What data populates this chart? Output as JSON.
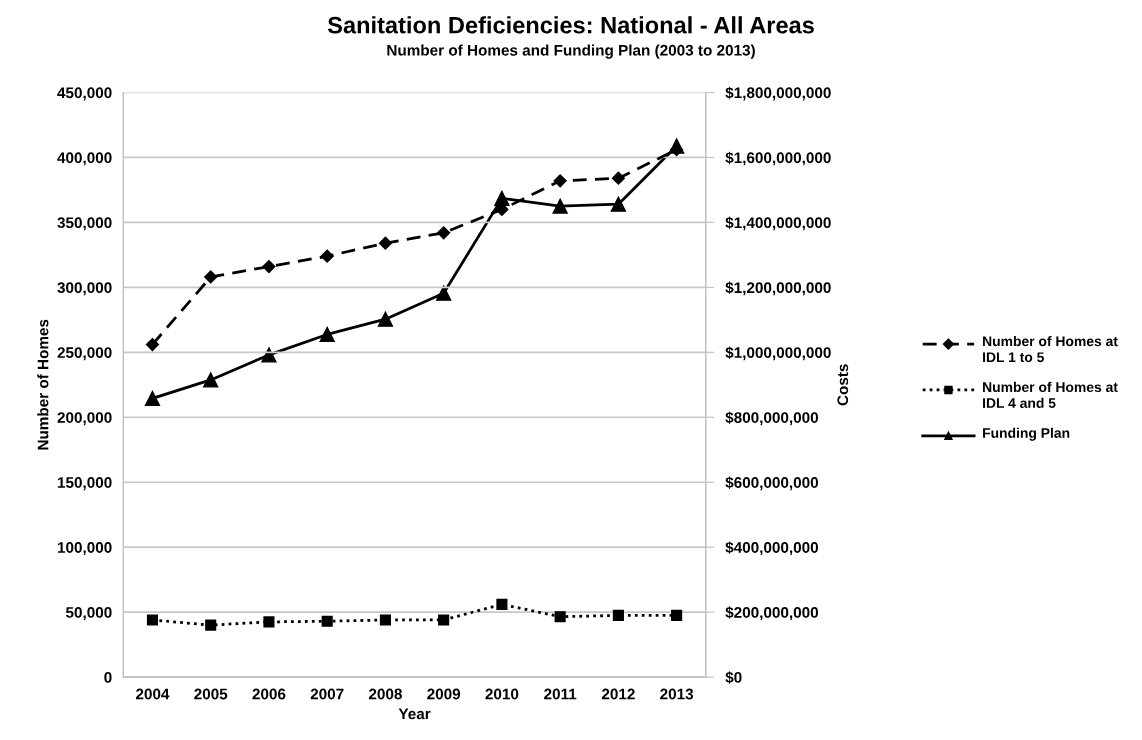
{
  "chart_data": {
    "type": "line",
    "title": "Sanitation Deficiencies: National - All Areas",
    "subtitle": "Number of Homes and Funding Plan (2003 to 2013)",
    "xlabel": "Year",
    "ylabel": "Number of Homes",
    "y2label": "Costs",
    "categories": [
      "2004",
      "2005",
      "2006",
      "2007",
      "2008",
      "2009",
      "2010",
      "2011",
      "2012",
      "2013"
    ],
    "series": [
      {
        "name": "Number of Homes at IDL 1 to 5",
        "color": "#000000",
        "marker": "diamond",
        "line_style": "dashed",
        "values": [
          256000,
          308000,
          316000,
          324000,
          334000,
          342000,
          360000,
          382000,
          384000,
          406000
        ]
      },
      {
        "name": "Number of Homes at IDL 4 and 5",
        "color": "#000000",
        "marker": "square",
        "line_style": "dotted",
        "values": [
          44000,
          40000,
          42500,
          43000,
          44000,
          44000,
          56000,
          46500,
          47500,
          47500
        ]
      },
      {
        "name": "Funding Plan",
        "color": "#000000",
        "marker": "triangle",
        "line_style": "solid",
        "axis": "y2",
        "values": [
          858000000,
          915000000,
          992000000,
          1055000000,
          1102000000,
          1182000000,
          1474000000,
          1450000000,
          1456000000,
          1635000000
        ]
      }
    ],
    "ylim": [
      0,
      450000
    ],
    "yticks": [
      {
        "value": 0,
        "label": "0"
      },
      {
        "value": 50000,
        "label": "50,000"
      },
      {
        "value": 100000,
        "label": "100,000"
      },
      {
        "value": 150000,
        "label": "150,000"
      },
      {
        "value": 200000,
        "label": "200,000"
      },
      {
        "value": 250000,
        "label": "250,000"
      },
      {
        "value": 300000,
        "label": "300,000"
      },
      {
        "value": 350000,
        "label": "350,000"
      },
      {
        "value": 400000,
        "label": "400,000"
      },
      {
        "value": 450000,
        "label": "450,000"
      }
    ],
    "y2lim": [
      0,
      1800000000
    ],
    "y2ticks": [
      {
        "value": 0,
        "label": "$0"
      },
      {
        "value": 200000000,
        "label": "$200,000,000"
      },
      {
        "value": 400000000,
        "label": "$400,000,000"
      },
      {
        "value": 600000000,
        "label": "$600,000,000"
      },
      {
        "value": 800000000,
        "label": "$800,000,000"
      },
      {
        "value": 1000000000,
        "label": "$1,000,000,000"
      },
      {
        "value": 1200000000,
        "label": "$1,200,000,000"
      },
      {
        "value": 1400000000,
        "label": "$1,400,000,000"
      },
      {
        "value": 1600000000,
        "label": "$1,600,000,000"
      },
      {
        "value": 1800000000,
        "label": "$1,800,000,000"
      }
    ],
    "grid": "y",
    "legend": "right"
  }
}
